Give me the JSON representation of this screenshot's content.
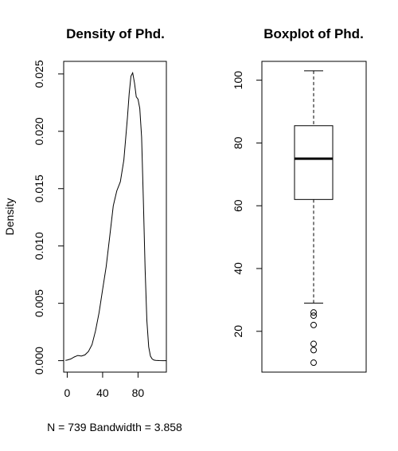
{
  "chart_data": [
    {
      "type": "line",
      "title": "Density of Phd.",
      "ylabel": "Density",
      "xlabel": "N = 739   Bandwidth = 3.858",
      "xlim": [
        -4,
        112
      ],
      "ylim": [
        -0.001,
        0.0261
      ],
      "x_ticks": [
        "0",
        "40",
        "80"
      ],
      "x_tick_values": [
        0,
        40,
        80
      ],
      "y_ticks": [
        "0.000",
        "0.005",
        "0.010",
        "0.015",
        "0.020",
        "0.025"
      ],
      "y_tick_values": [
        0,
        0.005,
        0.01,
        0.015,
        0.02,
        0.025
      ],
      "series": [
        {
          "x": [
            -2,
            0,
            4,
            8,
            12,
            16,
            20,
            24,
            28,
            32,
            36,
            40,
            44,
            48,
            52,
            56,
            60,
            64,
            68,
            70,
            72,
            74,
            76,
            78,
            80,
            82,
            84,
            86,
            88,
            90,
            92,
            94,
            96,
            98,
            100,
            104,
            108,
            112
          ],
          "values": [
            3e-05,
            5e-05,
            0.00015,
            0.00032,
            0.00045,
            0.0004,
            0.0005,
            0.0008,
            0.0014,
            0.0026,
            0.0042,
            0.0062,
            0.0082,
            0.0108,
            0.0135,
            0.0148,
            0.0156,
            0.0175,
            0.0212,
            0.0233,
            0.0248,
            0.0251,
            0.0242,
            0.023,
            0.0228,
            0.022,
            0.0195,
            0.014,
            0.008,
            0.0035,
            0.0012,
            0.0004,
            0.00015,
            5e-05,
            2e-05,
            1e-05,
            0.0,
            0.0
          ]
        }
      ]
    },
    {
      "type": "boxplot",
      "title": "Boxplot of Phd.",
      "ylim": [
        7,
        106
      ],
      "y_ticks": [
        "20",
        "40",
        "60",
        "80",
        "100"
      ],
      "y_tick_values": [
        20,
        40,
        60,
        80,
        100
      ],
      "stats": {
        "lower_whisker": 29,
        "q1": 62,
        "median": 75,
        "q3": 85.5,
        "upper_whisker": 103
      },
      "outliers": [
        26,
        25,
        22,
        16,
        14,
        10
      ]
    }
  ]
}
